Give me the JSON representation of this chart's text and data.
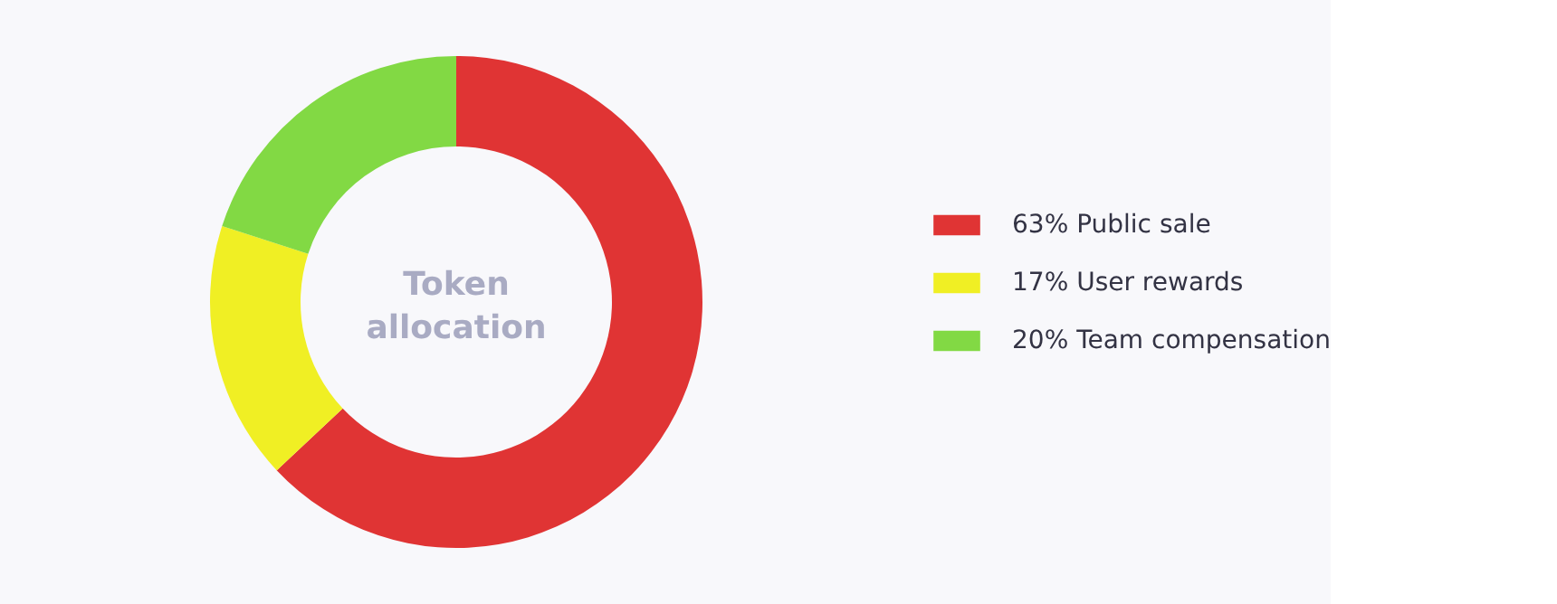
{
  "chart_data": {
    "type": "donut",
    "title": "Token allocation",
    "categories": [
      "63% Public sale",
      "17% User rewards",
      "20% Team compensation"
    ],
    "values": [
      63,
      17,
      20
    ],
    "colors": [
      "#e03434",
      "#f0ef24",
      "#82d944"
    ],
    "legend": "right"
  }
}
